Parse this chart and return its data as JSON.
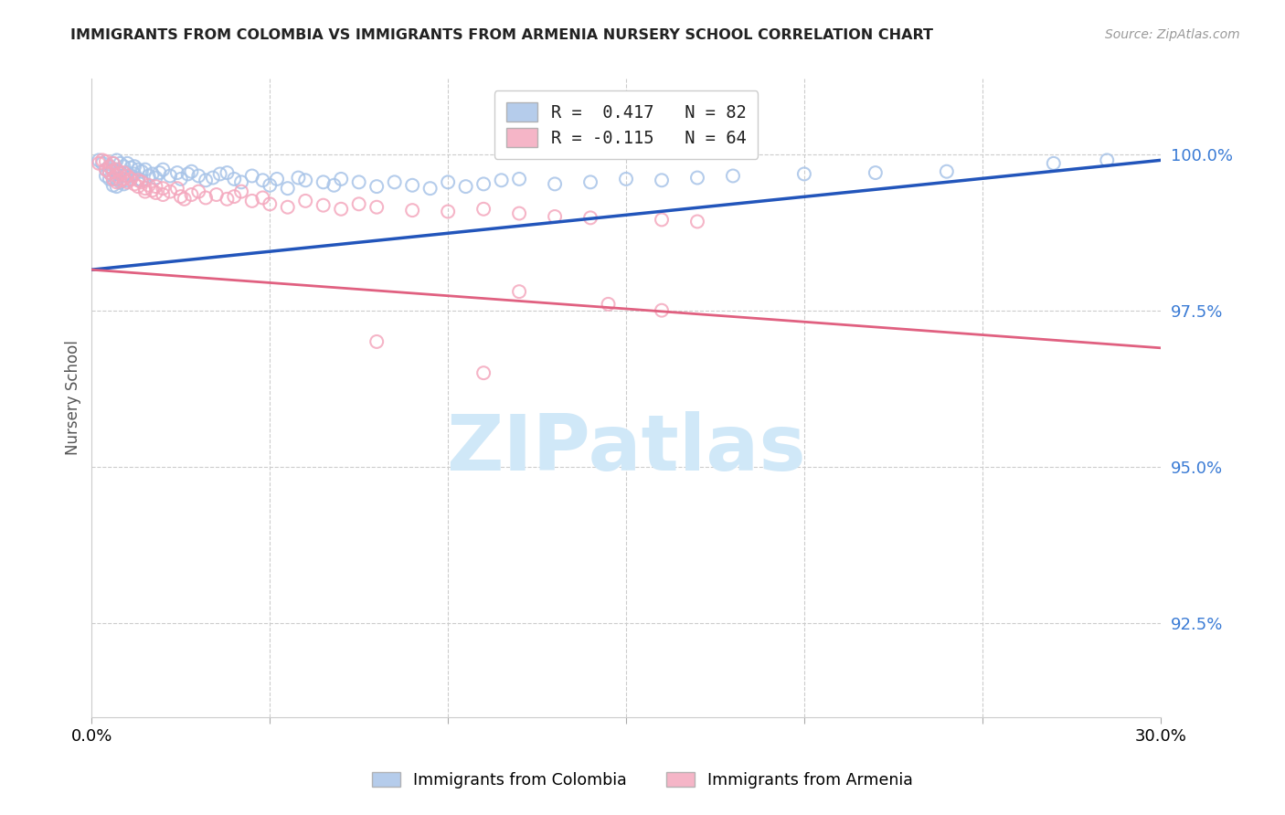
{
  "title": "IMMIGRANTS FROM COLOMBIA VS IMMIGRANTS FROM ARMENIA NURSERY SCHOOL CORRELATION CHART",
  "source": "Source: ZipAtlas.com",
  "ylabel": "Nursery School",
  "ytick_labels": [
    "92.5%",
    "95.0%",
    "97.5%",
    "100.0%"
  ],
  "ytick_values": [
    0.925,
    0.95,
    0.975,
    1.0
  ],
  "xmin": 0.0,
  "xmax": 0.3,
  "ymin": 0.91,
  "ymax": 1.012,
  "colombia_color": "#a8c4e8",
  "armenia_color": "#f4a8be",
  "colombia_line_color": "#2255bb",
  "armenia_line_color": "#e06080",
  "watermark_text": "ZIPatlas",
  "watermark_color": "#d0e8f8",
  "colombia_scatter": [
    [
      0.002,
      0.999
    ],
    [
      0.003,
      0.9985
    ],
    [
      0.004,
      0.9975
    ],
    [
      0.004,
      0.9965
    ],
    [
      0.005,
      0.998
    ],
    [
      0.005,
      0.997
    ],
    [
      0.005,
      0.996
    ],
    [
      0.006,
      0.9985
    ],
    [
      0.006,
      0.9975
    ],
    [
      0.006,
      0.996
    ],
    [
      0.006,
      0.995
    ],
    [
      0.007,
      0.999
    ],
    [
      0.007,
      0.9975
    ],
    [
      0.007,
      0.996
    ],
    [
      0.007,
      0.9948
    ],
    [
      0.008,
      0.9985
    ],
    [
      0.008,
      0.997
    ],
    [
      0.008,
      0.9955
    ],
    [
      0.009,
      0.998
    ],
    [
      0.009,
      0.9965
    ],
    [
      0.009,
      0.9952
    ],
    [
      0.01,
      0.9985
    ],
    [
      0.01,
      0.997
    ],
    [
      0.01,
      0.9958
    ],
    [
      0.011,
      0.9978
    ],
    [
      0.011,
      0.9965
    ],
    [
      0.012,
      0.998
    ],
    [
      0.012,
      0.9968
    ],
    [
      0.013,
      0.9975
    ],
    [
      0.013,
      0.996
    ],
    [
      0.014,
      0.9972
    ],
    [
      0.014,
      0.9958
    ],
    [
      0.015,
      0.9975
    ],
    [
      0.016,
      0.9965
    ],
    [
      0.017,
      0.9968
    ],
    [
      0.018,
      0.9962
    ],
    [
      0.019,
      0.997
    ],
    [
      0.02,
      0.9975
    ],
    [
      0.022,
      0.9965
    ],
    [
      0.024,
      0.997
    ],
    [
      0.025,
      0.996
    ],
    [
      0.027,
      0.9968
    ],
    [
      0.028,
      0.9972
    ],
    [
      0.03,
      0.9965
    ],
    [
      0.032,
      0.9958
    ],
    [
      0.034,
      0.9962
    ],
    [
      0.036,
      0.9968
    ],
    [
      0.038,
      0.997
    ],
    [
      0.04,
      0.996
    ],
    [
      0.042,
      0.9955
    ],
    [
      0.045,
      0.9965
    ],
    [
      0.048,
      0.9958
    ],
    [
      0.05,
      0.995
    ],
    [
      0.052,
      0.996
    ],
    [
      0.055,
      0.9945
    ],
    [
      0.058,
      0.9962
    ],
    [
      0.06,
      0.9958
    ],
    [
      0.065,
      0.9955
    ],
    [
      0.068,
      0.995
    ],
    [
      0.07,
      0.996
    ],
    [
      0.075,
      0.9955
    ],
    [
      0.08,
      0.9948
    ],
    [
      0.085,
      0.9955
    ],
    [
      0.09,
      0.995
    ],
    [
      0.095,
      0.9945
    ],
    [
      0.1,
      0.9955
    ],
    [
      0.105,
      0.9948
    ],
    [
      0.11,
      0.9952
    ],
    [
      0.115,
      0.9958
    ],
    [
      0.12,
      0.996
    ],
    [
      0.13,
      0.9952
    ],
    [
      0.14,
      0.9955
    ],
    [
      0.15,
      0.996
    ],
    [
      0.16,
      0.9958
    ],
    [
      0.17,
      0.9962
    ],
    [
      0.18,
      0.9965
    ],
    [
      0.2,
      0.9968
    ],
    [
      0.22,
      0.997
    ],
    [
      0.24,
      0.9972
    ],
    [
      0.27,
      0.9985
    ],
    [
      0.285,
      0.999
    ]
  ],
  "armenia_scatter": [
    [
      0.002,
      0.9985
    ],
    [
      0.003,
      0.999
    ],
    [
      0.004,
      0.9988
    ],
    [
      0.004,
      0.9975
    ],
    [
      0.005,
      0.998
    ],
    [
      0.005,
      0.997
    ],
    [
      0.006,
      0.9985
    ],
    [
      0.006,
      0.9972
    ],
    [
      0.006,
      0.996
    ],
    [
      0.007,
      0.9975
    ],
    [
      0.007,
      0.9965
    ],
    [
      0.007,
      0.9955
    ],
    [
      0.008,
      0.9968
    ],
    [
      0.008,
      0.9958
    ],
    [
      0.009,
      0.997
    ],
    [
      0.009,
      0.996
    ],
    [
      0.01,
      0.9965
    ],
    [
      0.01,
      0.9955
    ],
    [
      0.011,
      0.996
    ],
    [
      0.012,
      0.9952
    ],
    [
      0.013,
      0.9958
    ],
    [
      0.013,
      0.9948
    ],
    [
      0.014,
      0.9955
    ],
    [
      0.015,
      0.9945
    ],
    [
      0.015,
      0.994
    ],
    [
      0.016,
      0.995
    ],
    [
      0.017,
      0.9942
    ],
    [
      0.018,
      0.9948
    ],
    [
      0.018,
      0.9938
    ],
    [
      0.02,
      0.9945
    ],
    [
      0.02,
      0.9935
    ],
    [
      0.022,
      0.994
    ],
    [
      0.024,
      0.9945
    ],
    [
      0.025,
      0.9932
    ],
    [
      0.026,
      0.9928
    ],
    [
      0.028,
      0.9935
    ],
    [
      0.03,
      0.994
    ],
    [
      0.032,
      0.993
    ],
    [
      0.035,
      0.9935
    ],
    [
      0.038,
      0.9928
    ],
    [
      0.04,
      0.9932
    ],
    [
      0.042,
      0.994
    ],
    [
      0.045,
      0.9925
    ],
    [
      0.048,
      0.993
    ],
    [
      0.05,
      0.992
    ],
    [
      0.055,
      0.9915
    ],
    [
      0.06,
      0.9925
    ],
    [
      0.065,
      0.9918
    ],
    [
      0.07,
      0.9912
    ],
    [
      0.075,
      0.992
    ],
    [
      0.08,
      0.9915
    ],
    [
      0.09,
      0.991
    ],
    [
      0.1,
      0.9908
    ],
    [
      0.11,
      0.9912
    ],
    [
      0.12,
      0.9905
    ],
    [
      0.13,
      0.99
    ],
    [
      0.14,
      0.9898
    ],
    [
      0.16,
      0.9895
    ],
    [
      0.17,
      0.9892
    ],
    [
      0.12,
      0.978
    ],
    [
      0.145,
      0.976
    ],
    [
      0.16,
      0.975
    ],
    [
      0.08,
      0.97
    ],
    [
      0.11,
      0.965
    ]
  ]
}
